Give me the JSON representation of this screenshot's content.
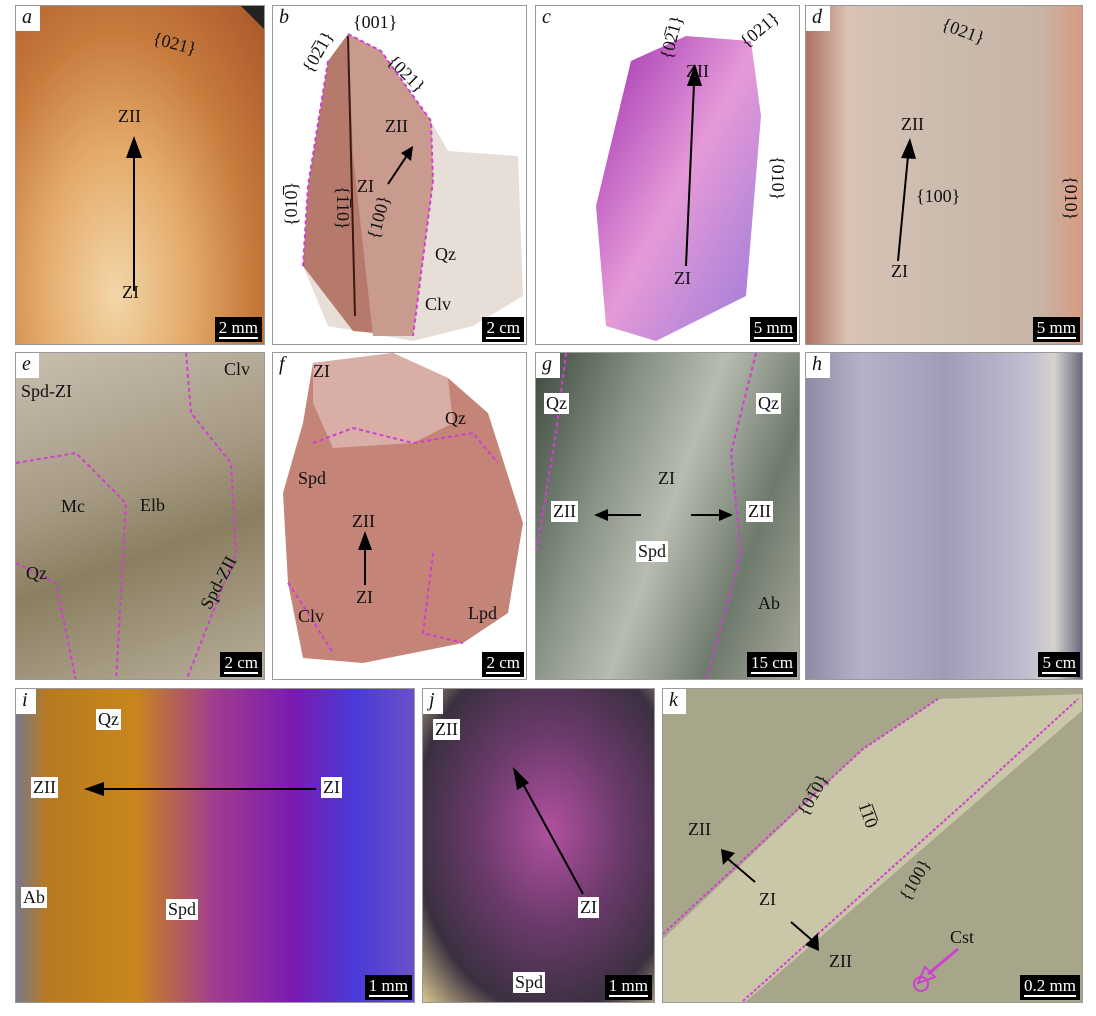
{
  "panels": {
    "a": {
      "letter": "a",
      "scale": "2 mm",
      "labels": [
        "{021}",
        "ZII",
        "ZI"
      ]
    },
    "b": {
      "letter": "b",
      "scale": "2 cm",
      "labels": [
        "{02̅1}",
        "{001}",
        "{021}",
        "ZII",
        "ZI",
        "{100}",
        "{1̅10}",
        "{010̅}",
        "Qz",
        "Clv"
      ]
    },
    "c": {
      "letter": "c",
      "scale": "5 mm",
      "labels": [
        "{02̅1}",
        "{021}",
        "ZII",
        "ZI",
        "{010}"
      ]
    },
    "d": {
      "letter": "d",
      "scale": "5 mm",
      "labels": [
        "{021}",
        "ZII",
        "{100}",
        "ZI",
        "{010}"
      ]
    },
    "e": {
      "letter": "e",
      "scale": "2 cm",
      "labels": [
        "Spd-ZI",
        "Clv",
        "Mc",
        "Elb",
        "Spd-ZII",
        "Qz"
      ]
    },
    "f": {
      "letter": "f",
      "scale": "2 cm",
      "labels": [
        "ZI",
        "Qz",
        "Spd",
        "ZII",
        "ZI",
        "Clv",
        "Lpd"
      ]
    },
    "g": {
      "letter": "g",
      "scale": "15 cm",
      "labels": [
        "Qz",
        "Qz",
        "ZII",
        "ZI",
        "ZII",
        "Spd",
        "Ab"
      ]
    },
    "h": {
      "letter": "h",
      "scale": "5 cm",
      "labels": []
    },
    "i": {
      "letter": "i",
      "scale": "1 mm",
      "labels": [
        "Qz",
        "ZII",
        "ZI",
        "Ab",
        "Spd"
      ]
    },
    "j": {
      "letter": "j",
      "scale": "1 mm",
      "labels": [
        "ZII",
        "ZI",
        "Spd"
      ]
    },
    "k": {
      "letter": "k",
      "scale": "0.2 mm",
      "labels": [
        "{01̅0}",
        "1̅1̅0",
        "ZII",
        "ZI",
        "{100}",
        "ZII",
        "Cst"
      ]
    }
  },
  "colors": {
    "boundary": "#d040d0",
    "arrow": "#000000"
  }
}
